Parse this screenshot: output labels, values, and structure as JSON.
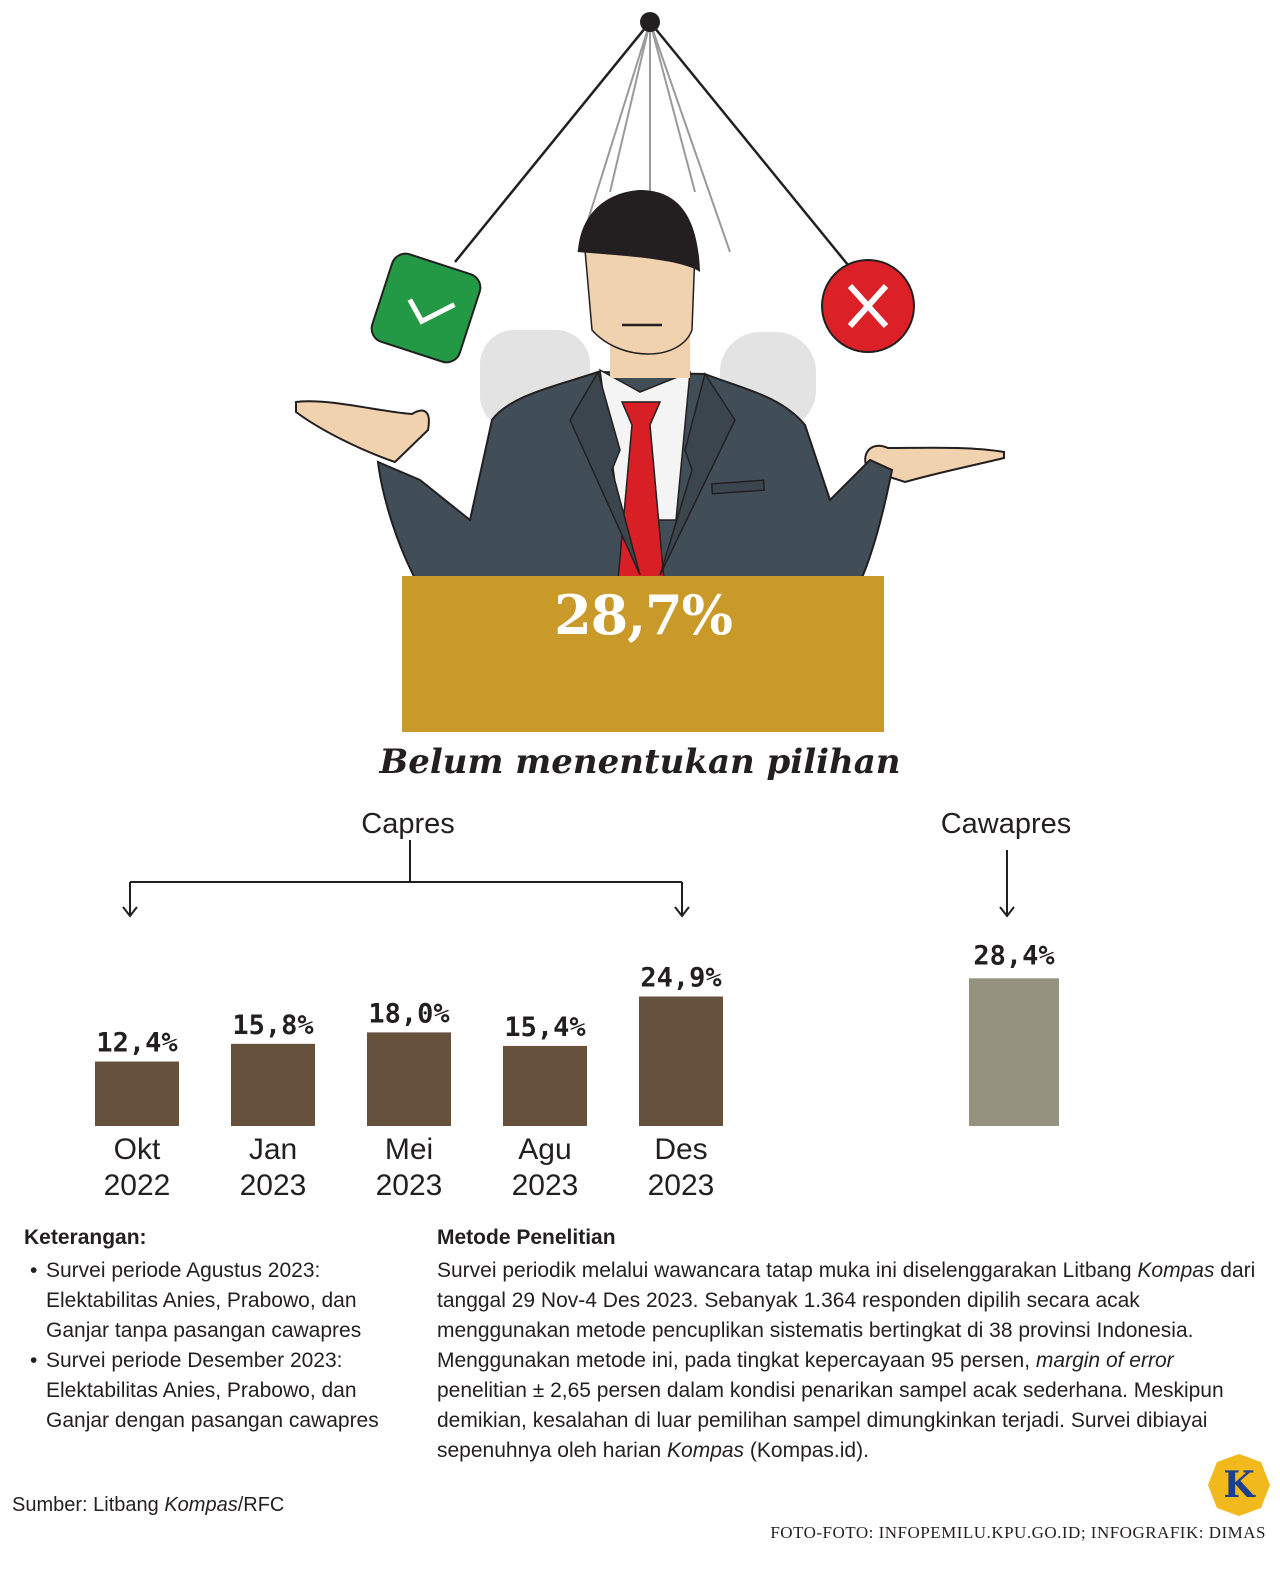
{
  "headline": {
    "value": "28,7%",
    "title": "Belum menentukan pilihan"
  },
  "colors": {
    "gold": "#c99a2a",
    "capres_bar": "#66513c",
    "cawapres_bar": "#959280",
    "suit": "#424e57",
    "tie": "#d91f26",
    "check_green": "#239845",
    "cross_red": "#db2027"
  },
  "icons": [
    "check-icon",
    "cross-icon",
    "kompas-logo-icon"
  ],
  "chart_data": [
    {
      "type": "bar",
      "group_label": "Capres",
      "categories": [
        "Okt 2022",
        "Jan 2023",
        "Mei 2023",
        "Agu 2023",
        "Des 2023"
      ],
      "category_lines": [
        [
          "Okt",
          "2022"
        ],
        [
          "Jan",
          "2023"
        ],
        [
          "Mei",
          "2023"
        ],
        [
          "Agu",
          "2023"
        ],
        [
          "Des",
          "2023"
        ]
      ],
      "values": [
        12.4,
        15.8,
        18.0,
        15.4,
        24.9
      ],
      "value_labels": [
        "12,4%",
        "15,8%",
        "18,0%",
        "15,4%",
        "24,9%"
      ],
      "ylim": [
        0,
        30
      ]
    },
    {
      "type": "bar",
      "group_label": "Cawapres",
      "categories": [
        ""
      ],
      "values": [
        28.4
      ],
      "value_labels": [
        "28,4%"
      ],
      "ylim": [
        0,
        30
      ]
    }
  ],
  "notes": {
    "heading": "Keterangan:",
    "items": [
      "Survei periode Agustus 2023: Elektabilitas Anies, Prabowo, dan Ganjar tanpa pasangan cawapres",
      "Survei periode Desember 2023: Elektabilitas Anies, Prabowo, dan Ganjar dengan pasangan cawapres"
    ]
  },
  "method": {
    "heading": "Metode Penelitian",
    "p1": "Survei periodik melalui wawancara tatap muka ini diselenggarakan Litbang ",
    "p1_em": "Kompas",
    "p2": " dari tanggal 29 Nov-4 Des 2023. Sebanyak 1.364 responden dipilih secara acak menggunakan metode pencuplikan sistematis bertingkat di 38 provinsi Indonesia. Menggunakan metode ini, pada tingkat kepercayaan 95 persen, ",
    "p2_em": "margin of error",
    "p3": " penelitian ± 2,65 persen dalam kondisi penarikan sampel acak sederhana. Meskipun demikian, kesalahan di luar pemilihan sampel dimungkinkan terjadi. Survei dibiayai sepenuhnya oleh harian ",
    "p3_em": "Kompas",
    "p4": " (Kompas.id)."
  },
  "source": {
    "prefix": "Sumber: Litbang ",
    "em": "Kompas",
    "suffix": "/RFC"
  },
  "credit": "FOTO-FOTO: INFOPEMILU.KPU.GO.ID; INFOGRAFIK: DIMAS",
  "logo_letter": "K"
}
